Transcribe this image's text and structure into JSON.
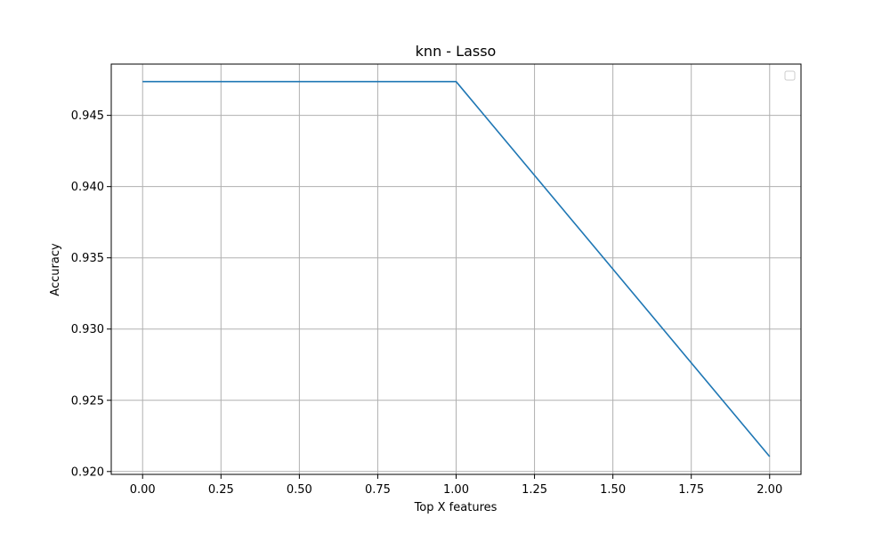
{
  "chart_data": {
    "type": "line",
    "title": "knn - Lasso",
    "xlabel": "Top X features",
    "ylabel": "Accuracy",
    "x": [
      0,
      1,
      2
    ],
    "series": [
      {
        "values": [
          0.94737,
          0.94737,
          0.92105
        ],
        "color": "#1f77b4"
      }
    ],
    "xlim": [
      -0.1,
      2.1
    ],
    "ylim": [
      0.9198,
      0.9486
    ],
    "xticks": [
      0.0,
      0.25,
      0.5,
      0.75,
      1.0,
      1.25,
      1.5,
      1.75,
      2.0
    ],
    "xtick_labels": [
      "0.00",
      "0.25",
      "0.50",
      "0.75",
      "1.00",
      "1.25",
      "1.50",
      "1.75",
      "2.00"
    ],
    "yticks": [
      0.92,
      0.925,
      0.93,
      0.935,
      0.94,
      0.945
    ],
    "ytick_labels": [
      "0.920",
      "0.925",
      "0.930",
      "0.935",
      "0.940",
      "0.945"
    ],
    "grid": true,
    "grid_color": "#b0b0b0",
    "legend": {
      "placement": "top-right",
      "entries": []
    }
  }
}
